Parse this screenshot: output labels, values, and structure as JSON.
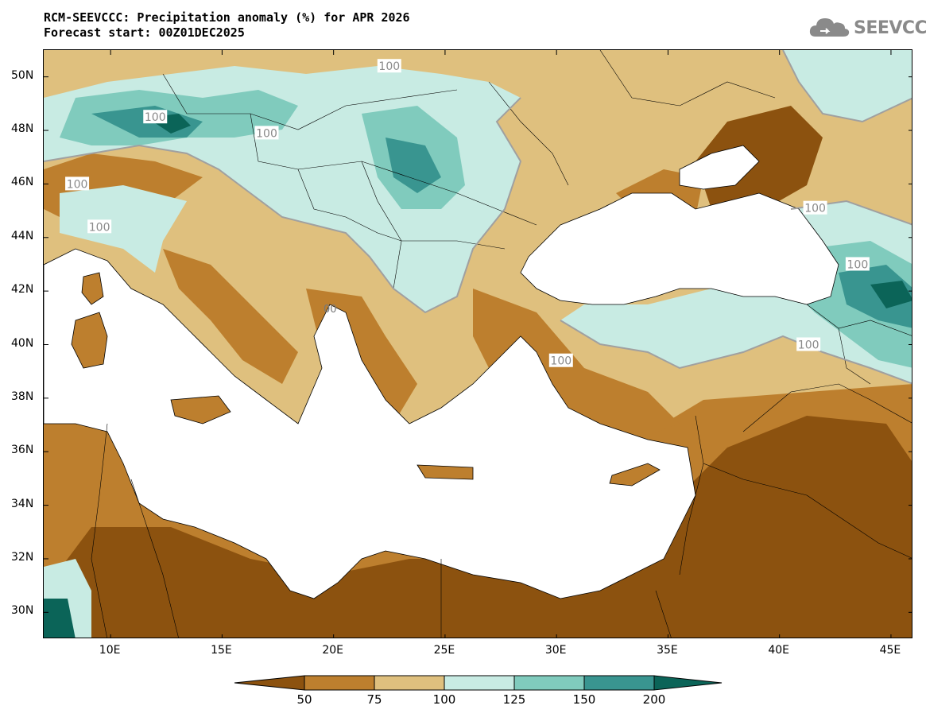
{
  "header": {
    "title_line1": "RCM-SEEVCCC: Precipitation anomaly (%) for APR 2026",
    "title_line2": "Forecast start: 00Z01DEC2025"
  },
  "logo": {
    "text": "SEEVCCC",
    "icon": "cloud-icon"
  },
  "map": {
    "projection": "lat-lon",
    "lon_range": [
      7,
      46
    ],
    "lat_range": [
      29,
      51
    ],
    "lon_ticks": [
      "10E",
      "15E",
      "20E",
      "25E",
      "30E",
      "35E",
      "40E",
      "45E"
    ],
    "lon_values": [
      10,
      15,
      20,
      25,
      30,
      35,
      40,
      45
    ],
    "lat_ticks": [
      "50N",
      "48N",
      "46N",
      "44N",
      "42N",
      "40N",
      "38N",
      "36N",
      "34N",
      "32N",
      "30N"
    ],
    "lat_values": [
      50,
      48,
      46,
      44,
      42,
      40,
      38,
      36,
      34,
      32,
      30
    ],
    "contour_label": "100",
    "partial_label": "00",
    "contour_labels": [
      {
        "lon": 22.5,
        "lat": 50.4
      },
      {
        "lon": 12.0,
        "lat": 48.5
      },
      {
        "lon": 17.0,
        "lat": 47.9
      },
      {
        "lon": 8.5,
        "lat": 46.0
      },
      {
        "lon": 9.5,
        "lat": 44.4
      },
      {
        "lon": 41.6,
        "lat": 45.1
      },
      {
        "lon": 43.5,
        "lat": 43.0
      },
      {
        "lon": 41.3,
        "lat": 40.0
      },
      {
        "lon": 30.2,
        "lat": 39.4
      }
    ]
  },
  "colors": {
    "lt50": "#8c520f",
    "50_75": "#bd7f2e",
    "75_100": "#dfc07e",
    "100_125": "#c8ebe3",
    "125_150": "#80cbbd",
    "150_200": "#399590",
    "gt200": "#0b6458",
    "sea": "#ffffff",
    "contour": "#a0a0a0"
  },
  "legend": {
    "ticks": [
      "50",
      "75",
      "100",
      "125",
      "150",
      "200"
    ],
    "bins": [
      "lt50",
      "50_75",
      "75_100",
      "100_125",
      "125_150",
      "150_200",
      "gt200"
    ]
  }
}
